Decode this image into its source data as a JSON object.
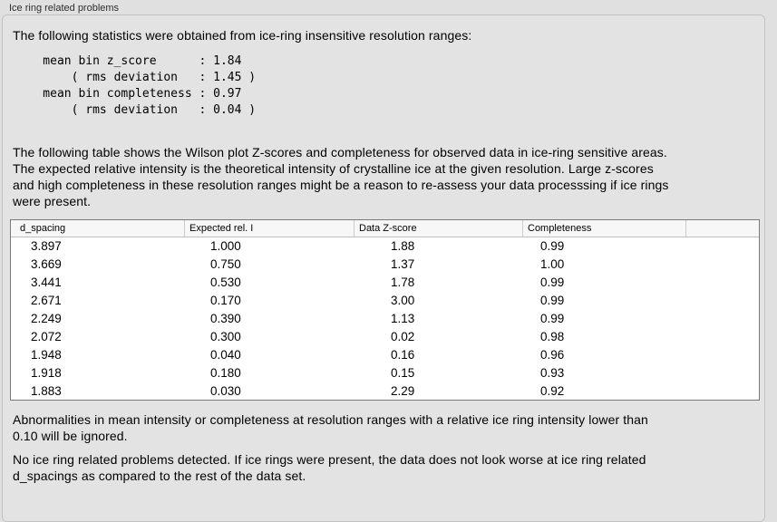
{
  "window": {
    "title": "Ice ring related problems"
  },
  "colors": {
    "page_bg": "#e0e0e0",
    "panel_bg": "#e3e3e3",
    "panel_border": "#c3c3c3",
    "table_border": "#7a7a7a",
    "table_header_bg": "#f7f7f7",
    "table_row_bg": "#ffffff",
    "text": "#000000"
  },
  "panel": {
    "intro": "The following statistics were obtained from ice-ring insensitive resolution ranges:",
    "stats_block": "    mean bin z_score      : 1.84\n        ( rms deviation   : 1.45 )\n    mean bin completeness : 0.97\n        ( rms deviation   : 0.04 )",
    "stats": {
      "mean_bin_z_score": "1.84",
      "z_score_rms_deviation": "1.45",
      "mean_bin_completeness": "0.97",
      "completeness_rms_deviation": "0.04"
    },
    "table_intro": "The following table shows the Wilson plot Z-scores and completeness for observed data in ice-ring sensitive areas.\nThe expected relative intensity is the theoretical intensity of crystalline ice at the given resolution. Large z-scores\nand high completeness in these resolution ranges might be a reason to re-assess your data processsing if ice rings\nwere present.",
    "table": {
      "columns": [
        "d_spacing",
        "Expected rel. I",
        "Data Z-score",
        "Completeness",
        ""
      ],
      "rows": [
        [
          "3.897",
          "1.000",
          "1.88",
          "0.99"
        ],
        [
          "3.669",
          "0.750",
          "1.37",
          "1.00"
        ],
        [
          "3.441",
          "0.530",
          "1.78",
          "0.99"
        ],
        [
          "2.671",
          "0.170",
          "3.00",
          "0.99"
        ],
        [
          "2.249",
          "0.390",
          "1.13",
          "0.99"
        ],
        [
          "2.072",
          "0.300",
          "0.02",
          "0.98"
        ],
        [
          "1.948",
          "0.040",
          "0.16",
          "0.96"
        ],
        [
          "1.918",
          "0.180",
          "0.15",
          "0.93"
        ],
        [
          "1.883",
          "0.030",
          "2.29",
          "0.92"
        ]
      ]
    },
    "note_ignore": "Abnormalities in mean intensity or completeness at resolution ranges with a relative ice ring intensity lower than\n0.10 will be ignored.",
    "conclusion": "No ice ring related problems detected. If ice rings were present, the data does not look worse at ice ring related\nd_spacings as compared to the rest of the data set."
  }
}
